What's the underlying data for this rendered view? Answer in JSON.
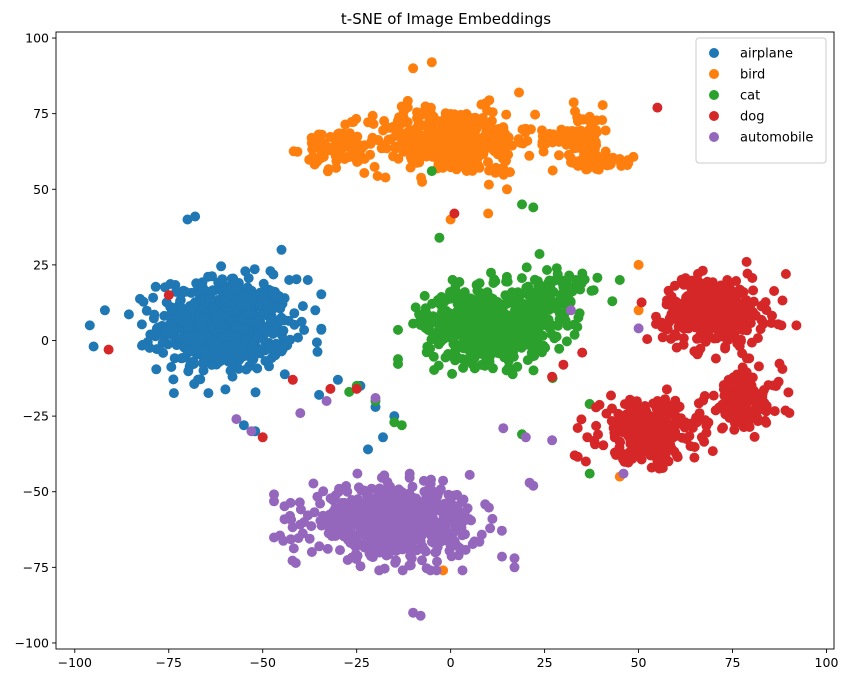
{
  "chart_data": {
    "type": "scatter",
    "title": "t-SNE of Image Embeddings",
    "xlabel": "",
    "ylabel": "",
    "xlim": [
      -105,
      102
    ],
    "ylim": [
      -102,
      102
    ],
    "xticks": [
      -100,
      -75,
      -50,
      -25,
      0,
      25,
      50,
      75,
      100
    ],
    "yticks": [
      -100,
      -75,
      -50,
      -25,
      0,
      25,
      50,
      75,
      100
    ],
    "grid": false,
    "legend_position": "top-right",
    "series": [
      {
        "name": "airplane",
        "color": "#1f77b4",
        "clusters": [
          {
            "center": [
              -60,
              5
            ],
            "spread": [
              16,
              14
            ],
            "n": 650
          }
        ],
        "points": [
          [
            -96,
            5
          ],
          [
            -95,
            -2
          ],
          [
            -92,
            10
          ],
          [
            -70,
            40
          ],
          [
            -68,
            41
          ],
          [
            -45,
            30
          ],
          [
            -38,
            20
          ],
          [
            -36,
            10
          ],
          [
            -55,
            -28
          ],
          [
            -52,
            -30
          ],
          [
            -35,
            -18
          ],
          [
            -30,
            -13
          ],
          [
            -24,
            -15
          ],
          [
            -20,
            -22
          ],
          [
            -15,
            -25
          ],
          [
            -18,
            -32
          ],
          [
            -22,
            -36
          ]
        ]
      },
      {
        "name": "bird",
        "color": "#ff7f0e",
        "clusters": [
          {
            "center": [
              0,
              66
            ],
            "spread": [
              20,
              10
            ],
            "n": 420
          },
          {
            "center": [
              -30,
              63
            ],
            "spread": [
              8,
              6
            ],
            "n": 60
          },
          {
            "center": [
              35,
              68
            ],
            "spread": [
              7,
              9
            ],
            "n": 70
          },
          {
            "center": [
              40,
              59
            ],
            "spread": [
              8,
              2
            ],
            "n": 40
          }
        ],
        "points": [
          [
            -35,
            68
          ],
          [
            -37,
            67
          ],
          [
            -10,
            90
          ],
          [
            -5,
            92
          ],
          [
            0,
            40
          ],
          [
            10,
            42
          ],
          [
            45,
            60
          ],
          [
            47,
            58
          ],
          [
            37,
            -21
          ],
          [
            -2,
            -76
          ],
          [
            50,
            10
          ],
          [
            50,
            25
          ],
          [
            45,
            -45
          ]
        ]
      },
      {
        "name": "cat",
        "color": "#2ca02c",
        "clusters": [
          {
            "center": [
              10,
              5
            ],
            "spread": [
              15,
              11
            ],
            "n": 620
          },
          {
            "center": [
              28,
              15
            ],
            "spread": [
              7,
              9
            ],
            "n": 100
          }
        ],
        "points": [
          [
            -5,
            56
          ],
          [
            19,
            45
          ],
          [
            22,
            44
          ],
          [
            -3,
            34
          ],
          [
            -25,
            -15
          ],
          [
            -20,
            -20
          ],
          [
            -15,
            -27
          ],
          [
            19,
            -31
          ],
          [
            37,
            -21
          ],
          [
            37,
            -44
          ],
          [
            43,
            13
          ],
          [
            45,
            20
          ],
          [
            -13,
            -28
          ],
          [
            -27,
            -17
          ]
        ]
      },
      {
        "name": "dog",
        "color": "#d62728",
        "clusters": [
          {
            "center": [
              70,
              10
            ],
            "spread": [
              12,
              10
            ],
            "n": 380
          },
          {
            "center": [
              53,
              -30
            ],
            "spread": [
              12,
              9
            ],
            "n": 300
          },
          {
            "center": [
              78,
              -20
            ],
            "spread": [
              9,
              10
            ],
            "n": 140
          }
        ],
        "points": [
          [
            -91,
            -3
          ],
          [
            -75,
            15
          ],
          [
            -42,
            -13
          ],
          [
            -50,
            -32
          ],
          [
            -32,
            -16
          ],
          [
            27,
            -12
          ],
          [
            30,
            -8
          ],
          [
            35,
            -4
          ],
          [
            1,
            42
          ],
          [
            55,
            77
          ],
          [
            -25,
            -16
          ],
          [
            88,
            5
          ],
          [
            92,
            5
          ],
          [
            33,
            -38
          ],
          [
            36,
            -40
          ]
        ]
      },
      {
        "name": "automobile",
        "color": "#9467bd",
        "clusters": [
          {
            "center": [
              -15,
              -60
            ],
            "spread": [
              20,
              10
            ],
            "n": 650
          }
        ],
        "points": [
          [
            -57,
            -26
          ],
          [
            -53,
            -30
          ],
          [
            -40,
            -24
          ],
          [
            -33,
            -20
          ],
          [
            -20,
            -19
          ],
          [
            32,
            10
          ],
          [
            27,
            -33
          ],
          [
            14,
            -29
          ],
          [
            20,
            -32
          ],
          [
            22,
            -48
          ],
          [
            21,
            -47
          ],
          [
            46,
            -44
          ],
          [
            50,
            4
          ],
          [
            -10,
            -90
          ],
          [
            -8,
            -91
          ],
          [
            17,
            -72
          ],
          [
            17,
            -75
          ]
        ]
      }
    ]
  }
}
